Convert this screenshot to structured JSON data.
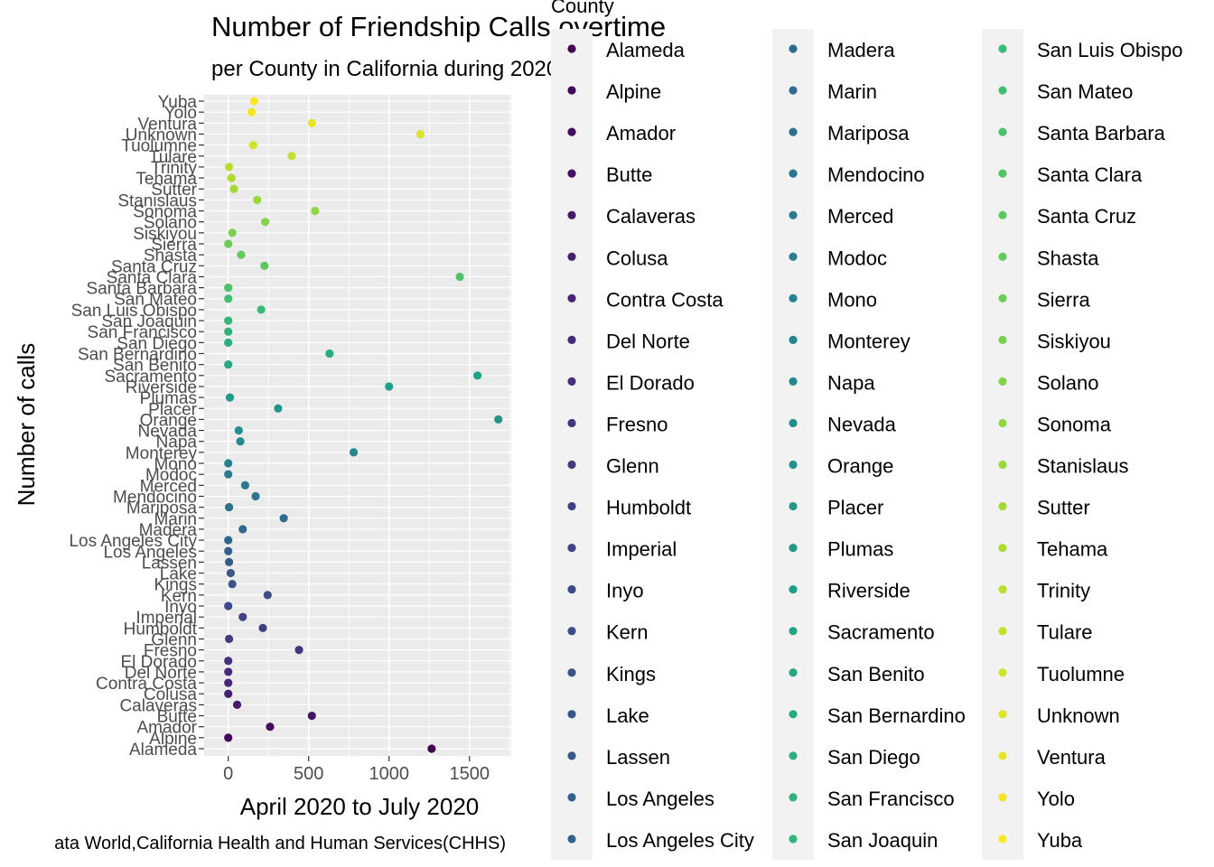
{
  "chart_data": {
    "type": "scatter",
    "title": "Number of Friendship Calls overtime",
    "subtitle": "per County in California during 2020",
    "xlabel": "April 2020 to July 2020",
    "ylabel": "Number of calls",
    "caption": "ata World,California Health and Human Services(CHHS)",
    "legend_title": "County",
    "legend_placement": "right",
    "xlim": [
      -150,
      1760
    ],
    "xticks": [
      0,
      500,
      1000,
      1500
    ],
    "grid": true,
    "panel_background": "#ebebeb",
    "colormap": "viridis",
    "categories": [
      "Alameda",
      "Alpine",
      "Amador",
      "Butte",
      "Calaveras",
      "Colusa",
      "Contra Costa",
      "Del Norte",
      "El Dorado",
      "Fresno",
      "Glenn",
      "Humboldt",
      "Imperial",
      "Inyo",
      "Kern",
      "Kings",
      "Lake",
      "Lassen",
      "Los Angeles",
      "Los Angeles City",
      "Madera",
      "Marin",
      "Mariposa",
      "Mendocino",
      "Merced",
      "Modoc",
      "Mono",
      "Monterey",
      "Napa",
      "Nevada",
      "Orange",
      "Placer",
      "Plumas",
      "Riverside",
      "Sacramento",
      "San Benito",
      "San Bernardino",
      "San Diego",
      "San Francisco",
      "San Joaquin",
      "San Luis Obispo",
      "San Mateo",
      "Santa Barbara",
      "Santa Clara",
      "Santa Cruz",
      "Shasta",
      "Sierra",
      "Siskiyou",
      "Solano",
      "Sonoma",
      "Stanislaus",
      "Sutter",
      "Tehama",
      "Trinity",
      "Tulare",
      "Tuolumne",
      "Unknown",
      "Ventura",
      "Yolo",
      "Yuba"
    ],
    "values": [
      1265,
      0,
      260,
      520,
      55,
      0,
      0,
      0,
      0,
      440,
      5,
      215,
      90,
      0,
      245,
      25,
      15,
      5,
      0,
      0,
      90,
      345,
      5,
      170,
      105,
      0,
      0,
      780,
      75,
      65,
      1680,
      310,
      10,
      1000,
      1550,
      0,
      630,
      0,
      0,
      0,
      205,
      0,
      0,
      1440,
      225,
      80,
      0,
      25,
      230,
      540,
      180,
      35,
      20,
      5,
      395,
      155,
      1195,
      520,
      145,
      160
    ]
  }
}
